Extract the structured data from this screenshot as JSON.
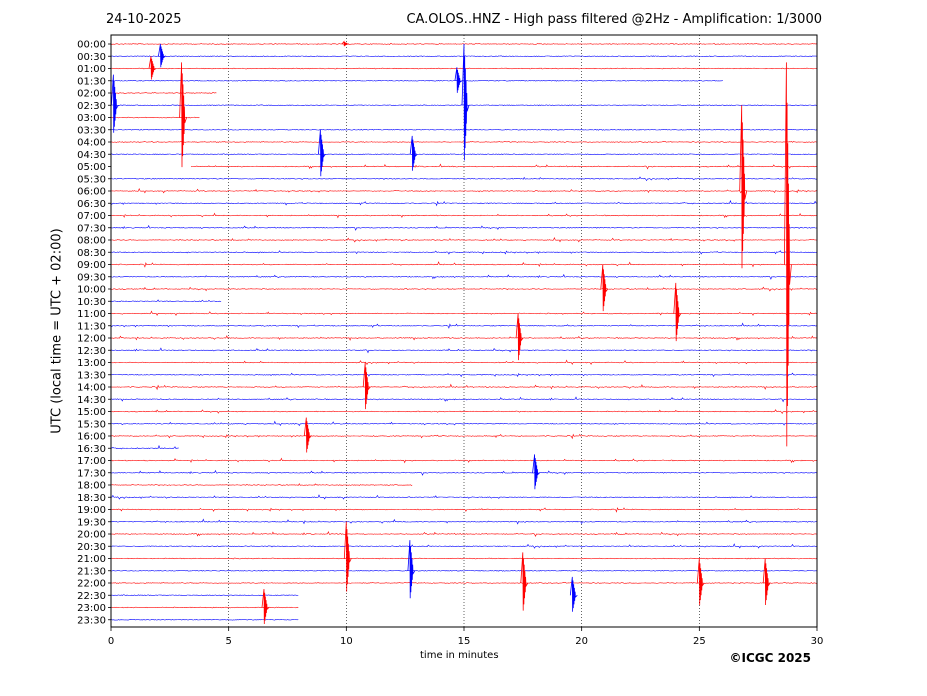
{
  "header": {
    "date": "24-10-2025",
    "title": "CA.OLOS..HNZ - High pass filtered @2Hz - Amplification: 1/3000"
  },
  "footer": {
    "copyright": "©ICGC 2025"
  },
  "colors": {
    "red": "#ff0000",
    "blue": "#0000ff"
  },
  "chart_data": {
    "type": "line",
    "subtype": "helicorder",
    "xlabel": "time in minutes",
    "ylabel": "UTC (local time = UTC + 02:00)",
    "xlim": [
      0,
      30
    ],
    "xticks": [
      0,
      5,
      10,
      15,
      20,
      25,
      30
    ],
    "grid": "vertical dotted lines every 5 minutes",
    "row_labels": [
      "00:00",
      "00:30",
      "01:00",
      "01:30",
      "02:00",
      "02:30",
      "03:00",
      "03:30",
      "04:00",
      "04:30",
      "05:00",
      "05:30",
      "06:00",
      "06:30",
      "07:00",
      "07:30",
      "08:00",
      "08:30",
      "09:00",
      "09:30",
      "10:00",
      "10:30",
      "11:00",
      "11:30",
      "12:00",
      "12:30",
      "13:00",
      "13:30",
      "14:00",
      "14:30",
      "15:00",
      "15:30",
      "16:00",
      "16:30",
      "17:00",
      "17:30",
      "18:00",
      "18:30",
      "19:00",
      "19:30",
      "20:00",
      "20:30",
      "21:00",
      "21:30",
      "22:00",
      "22:30",
      "23:00",
      "23:30"
    ],
    "row_colors": "alternating red (even rows) and blue (odd rows)",
    "data_gaps": [
      {
        "row": "01:30",
        "end_min": 26.0
      },
      {
        "row": "02:00",
        "end_min": 4.5
      },
      {
        "row": "03:00",
        "end_min": 3.8
      },
      {
        "row": "05:00",
        "start_min": 3.4
      },
      {
        "row": "10:30",
        "end_min": 4.7
      },
      {
        "row": "16:30",
        "end_min": 2.9
      },
      {
        "row": "18:00",
        "end_min": 12.8
      },
      {
        "row": "22:30",
        "end_min": 8.0
      },
      {
        "row": "23:00",
        "end_min": 8.0
      },
      {
        "row": "23:30",
        "end_min": 8.0
      }
    ],
    "events": [
      {
        "row": "00:00",
        "min": 9.9,
        "amp": 0.4
      },
      {
        "row": "00:30",
        "min": 2.1,
        "amp": 2.0
      },
      {
        "row": "01:00",
        "min": 1.7,
        "amp": 2.0
      },
      {
        "row": "01:30",
        "min": 14.7,
        "amp": 2.2
      },
      {
        "row": "02:30",
        "min": 0.1,
        "amp": 5.0
      },
      {
        "row": "03:00",
        "min": 3.0,
        "amp": 9.0
      },
      {
        "row": "04:30",
        "min": 8.9,
        "amp": 4.0
      },
      {
        "row": "04:30",
        "min": 12.8,
        "amp": 3.0
      },
      {
        "row": "02:30",
        "min": 15.0,
        "amp": 10.0
      },
      {
        "row": "06:00",
        "min": 26.8,
        "amp": 14.0
      },
      {
        "row": "09:00",
        "min": 28.7,
        "amp": 33.0
      },
      {
        "row": "10:00",
        "min": 20.9,
        "amp": 4.0
      },
      {
        "row": "11:00",
        "min": 24.0,
        "amp": 5.0
      },
      {
        "row": "12:00",
        "min": 17.3,
        "amp": 4.0
      },
      {
        "row": "14:00",
        "min": 10.8,
        "amp": 4.0
      },
      {
        "row": "16:00",
        "min": 8.3,
        "amp": 3.0
      },
      {
        "row": "17:30",
        "min": 18.0,
        "amp": 3.0
      },
      {
        "row": "21:00",
        "min": 10.0,
        "amp": 6.0
      },
      {
        "row": "21:30",
        "min": 12.7,
        "amp": 5.0
      },
      {
        "row": "22:00",
        "min": 17.5,
        "amp": 5.0
      },
      {
        "row": "22:30",
        "min": 19.6,
        "amp": 3.0
      },
      {
        "row": "22:00",
        "min": 25.0,
        "amp": 4.0
      },
      {
        "row": "22:00",
        "min": 27.8,
        "amp": 4.0
      },
      {
        "row": "23:00",
        "min": 6.5,
        "amp": 3.0
      }
    ]
  }
}
